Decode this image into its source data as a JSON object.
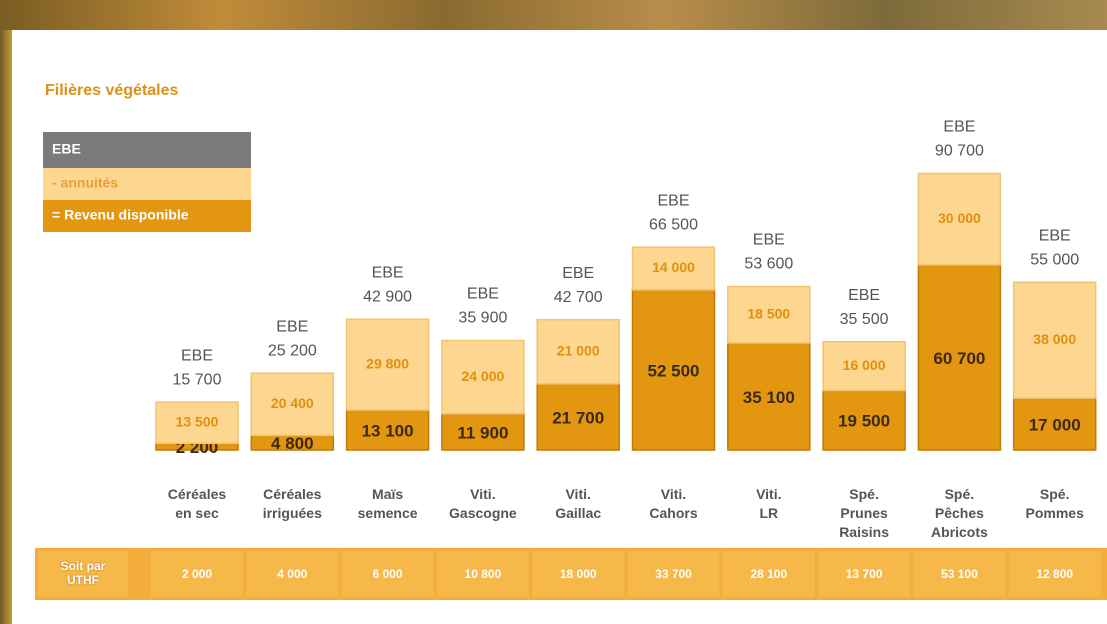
{
  "chart_data": {
    "type": "bar",
    "stacked": true,
    "title": "Filières végétales",
    "total_name": "EBE",
    "total_color": "#7b7b7b",
    "categories": [
      "Céréales\nen sec",
      "Céréales\nirriguées",
      "Maïs\nsemence",
      "Viti.\nGascogne",
      "Viti.\nGaillac",
      "Viti.\nCahors",
      "Viti.\nLR",
      "Spé.\nPrunes\nRaisins",
      "Spé.\nPêches\nAbricots",
      "Spé.\nPommes"
    ],
    "series": [
      {
        "name": "= Revenu disponible",
        "color": "#e3960f",
        "values": [
          2200,
          4800,
          13100,
          11900,
          21700,
          52500,
          35100,
          19500,
          60700,
          17000
        ],
        "value_labels": [
          "2 200",
          "4 800",
          "13 100",
          "11 900",
          "21 700",
          "52 500",
          "35 100",
          "19 500",
          "60 700",
          "17 000"
        ]
      },
      {
        "name": "- annuités",
        "color": "#fdd68f",
        "values": [
          13500,
          20400,
          29800,
          24000,
          21000,
          14000,
          18500,
          16000,
          30000,
          38000
        ],
        "value_labels": [
          "13 500",
          "20 400",
          "29 800",
          "24 000",
          "21 000",
          "14 000",
          "18 500",
          "16 000",
          "30 000",
          "38 000"
        ]
      }
    ],
    "totals": [
      15700,
      25200,
      42900,
      35900,
      42700,
      66500,
      53600,
      35500,
      90700,
      55000
    ],
    "total_labels": [
      "15 700",
      "25 200",
      "42 900",
      "35 900",
      "42 700",
      "66 500",
      "53 600",
      "35 500",
      "90 700",
      "55 000"
    ],
    "uthf": {
      "label": "Soit par\nUTHF",
      "values": [
        2000,
        4000,
        6000,
        10800,
        18000,
        33700,
        28100,
        13700,
        53100,
        12800
      ],
      "value_labels": [
        "2 000",
        "4 000",
        "6 000",
        "10 800",
        "18 000",
        "33 700",
        "28 100",
        "13 700",
        "53 100",
        "12 800"
      ]
    }
  }
}
